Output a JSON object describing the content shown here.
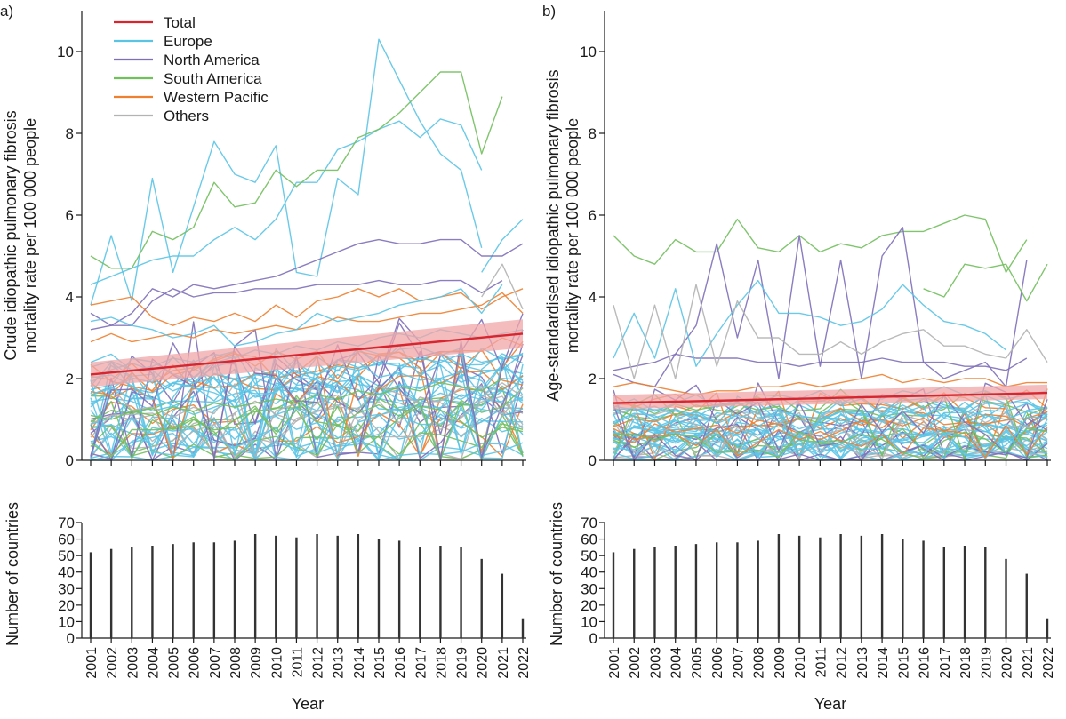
{
  "chart_data": [
    {
      "panel": "a)",
      "type": "line",
      "ylabel_lines": [
        "Crude idiopathic pulmonary fibrosis",
        "mortality rate per 100 000 people"
      ],
      "xlabel": "",
      "ylim": [
        0,
        11
      ],
      "yticks": [
        0,
        2,
        4,
        6,
        8,
        10
      ],
      "x": [
        2001,
        2002,
        2003,
        2004,
        2005,
        2006,
        2007,
        2008,
        2009,
        2010,
        2011,
        2012,
        2013,
        2014,
        2015,
        2016,
        2017,
        2018,
        2019,
        2020,
        2021,
        2022
      ],
      "legend": [
        "Total",
        "Europe",
        "North America",
        "South America",
        "Western Pacific",
        "Others"
      ],
      "colors": {
        "Total": "#d7262f",
        "Europe": "#5bc4e5",
        "North America": "#7e6fb8",
        "South America": "#72bf5e",
        "Western Pacific": "#ee8030",
        "Others": "#b3b3b3",
        "Band": "#f2a5a7"
      },
      "total_trend": {
        "start": 2.1,
        "end": 3.1,
        "band_start": [
          1.8,
          2.4
        ],
        "band_end": [
          2.75,
          3.45
        ]
      },
      "highlighted_series": [
        {
          "group": "Europe",
          "values": [
            4.3,
            4.5,
            4.7,
            4.9,
            5.0,
            5.0,
            5.4,
            5.7,
            5.4,
            5.9,
            6.8,
            6.8,
            7.6,
            7.8,
            8.1,
            8.3,
            7.9,
            8.35,
            8.2,
            7.1,
            null,
            null
          ]
        },
        {
          "group": "Europe",
          "values": [
            3.8,
            5.5,
            3.9,
            6.9,
            4.6,
            6.2,
            7.8,
            7.0,
            6.8,
            7.7,
            4.6,
            4.5,
            6.9,
            6.5,
            10.3,
            9.3,
            8.3,
            7.5,
            7.1,
            5.2,
            null,
            null
          ]
        },
        {
          "group": "South America",
          "values": [
            5.0,
            4.7,
            4.7,
            5.6,
            5.4,
            5.7,
            6.8,
            6.2,
            6.3,
            7.1,
            6.7,
            7.1,
            7.1,
            7.9,
            8.1,
            8.5,
            9.0,
            9.5,
            9.5,
            7.5,
            8.9,
            null
          ]
        },
        {
          "group": "Europe",
          "values": [
            null,
            null,
            null,
            null,
            null,
            null,
            null,
            null,
            null,
            null,
            null,
            null,
            null,
            null,
            null,
            null,
            null,
            null,
            null,
            4.6,
            5.4,
            5.9
          ]
        },
        {
          "group": "North America",
          "values": [
            3.6,
            3.3,
            3.6,
            4.2,
            4.0,
            4.3,
            4.2,
            4.3,
            4.4,
            4.5,
            4.7,
            4.9,
            5.1,
            5.3,
            5.4,
            5.3,
            5.3,
            5.4,
            5.4,
            5.0,
            5.0,
            5.3
          ]
        },
        {
          "group": "North America",
          "values": [
            3.2,
            3.3,
            3.3,
            3.9,
            4.2,
            4.0,
            4.1,
            4.1,
            4.2,
            4.2,
            4.2,
            4.3,
            4.3,
            4.3,
            4.4,
            4.3,
            4.3,
            4.4,
            4.4,
            4.1,
            4.4,
            null
          ]
        },
        {
          "group": "Western Pacific",
          "values": [
            3.8,
            3.9,
            4.0,
            3.5,
            3.3,
            3.5,
            3.4,
            3.6,
            3.4,
            3.8,
            3.5,
            3.9,
            4.0,
            4.2,
            4.0,
            4.2,
            3.9,
            4.0,
            4.1,
            3.7,
            4.0,
            4.2
          ]
        },
        {
          "group": "Western Pacific",
          "values": [
            2.9,
            3.1,
            2.9,
            3.0,
            3.1,
            3.0,
            3.2,
            3.1,
            3.2,
            3.3,
            3.2,
            3.3,
            3.5,
            3.4,
            3.4,
            3.5,
            3.6,
            3.6,
            3.7,
            3.8,
            4.1,
            3.6
          ]
        },
        {
          "group": "Others",
          "values": [
            null,
            null,
            null,
            null,
            null,
            null,
            null,
            null,
            null,
            null,
            null,
            null,
            null,
            null,
            null,
            null,
            null,
            null,
            null,
            4.0,
            4.8,
            3.7
          ]
        },
        {
          "group": "Europe",
          "values": [
            3.4,
            3.5,
            3.3,
            3.2,
            3.0,
            3.1,
            3.3,
            2.8,
            2.9,
            3.1,
            3.2,
            3.6,
            3.4,
            3.5,
            3.6,
            3.8,
            3.9,
            4.0,
            4.2,
            3.6,
            4.3,
            null
          ]
        },
        {
          "group": "Europe",
          "values": [
            2.4,
            2.6,
            2.2,
            2.3,
            2.5,
            2.4,
            2.6,
            2.5,
            2.7,
            2.6,
            2.8,
            2.7,
            2.9,
            2.8,
            3.0,
            3.1,
            3.0,
            3.2,
            3.1,
            3.0,
            3.1,
            3.2
          ]
        },
        {
          "group": "Europe",
          "values": [
            1.6,
            1.8,
            1.5,
            2.0,
            1.7,
            1.9,
            2.0,
            1.8,
            2.1,
            2.0,
            2.2,
            2.1,
            2.3,
            2.2,
            2.4,
            2.3,
            2.5,
            2.4,
            2.6,
            2.4,
            2.5,
            2.6
          ]
        },
        {
          "group": "South America",
          "values": [
            1.1,
            1.0,
            1.2,
            1.1,
            1.3,
            1.2,
            1.4,
            1.3,
            1.4,
            1.5,
            1.4,
            1.6,
            1.5,
            1.7,
            1.6,
            1.8,
            1.7,
            1.9,
            1.8,
            1.7,
            2.0,
            null
          ]
        }
      ],
      "country_counts": {
        "ylabel": "Number of countries",
        "xlabel": "Year",
        "ylim": [
          0,
          70
        ],
        "yticks": [
          0,
          10,
          20,
          30,
          40,
          50,
          60,
          70
        ],
        "categories": [
          "2001",
          "2002",
          "2003",
          "2004",
          "2005",
          "2006",
          "2007",
          "2008",
          "2009",
          "2010",
          "2011",
          "2012",
          "2013",
          "2014",
          "2015",
          "2016",
          "2017",
          "2018",
          "2019",
          "2020",
          "2021",
          "2022"
        ],
        "values": [
          52,
          54,
          55,
          56,
          57,
          58,
          58,
          59,
          63,
          62,
          61,
          63,
          62,
          63,
          60,
          59,
          55,
          56,
          55,
          48,
          39,
          12
        ]
      }
    },
    {
      "panel": "b)",
      "type": "line",
      "ylabel_lines": [
        "Age-standardised idiopathic pulmonary fibrosis",
        "mortality rate per 100 000 people"
      ],
      "xlabel": "",
      "ylim": [
        0,
        11
      ],
      "yticks": [
        0,
        2,
        4,
        6,
        8,
        10
      ],
      "x": [
        2001,
        2002,
        2003,
        2004,
        2005,
        2006,
        2007,
        2008,
        2009,
        2010,
        2011,
        2012,
        2013,
        2014,
        2015,
        2016,
        2017,
        2018,
        2019,
        2020,
        2021,
        2022
      ],
      "total_trend": {
        "start": 1.4,
        "end": 1.65,
        "band_start": [
          1.25,
          1.6
        ],
        "band_end": [
          1.5,
          1.85
        ]
      },
      "highlighted_series": [
        {
          "group": "South America",
          "values": [
            5.5,
            5.0,
            4.8,
            5.4,
            5.1,
            5.1,
            5.9,
            5.2,
            5.1,
            5.5,
            5.1,
            5.3,
            5.2,
            5.5,
            5.6,
            5.6,
            5.8,
            6.0,
            5.9,
            4.6,
            5.4,
            null
          ]
        },
        {
          "group": "North America",
          "values": [
            2.1,
            1.9,
            1.8,
            2.6,
            3.3,
            5.3,
            3.0,
            4.9,
            2.0,
            5.5,
            2.3,
            4.9,
            2.0,
            5.0,
            5.7,
            2.4,
            2.0,
            2.2,
            2.4,
            1.8,
            4.9,
            null
          ]
        },
        {
          "group": "North America",
          "values": [
            2.2,
            2.3,
            2.4,
            2.6,
            2.5,
            2.5,
            2.5,
            2.4,
            2.4,
            2.3,
            2.4,
            2.4,
            2.4,
            2.5,
            2.4,
            2.4,
            2.4,
            2.3,
            2.3,
            2.2,
            2.5,
            null
          ]
        },
        {
          "group": "South America",
          "values": [
            null,
            null,
            null,
            null,
            null,
            null,
            null,
            null,
            null,
            null,
            null,
            null,
            null,
            null,
            null,
            4.2,
            4.0,
            4.8,
            4.7,
            4.8,
            3.9,
            4.8
          ]
        },
        {
          "group": "Europe",
          "values": [
            2.5,
            3.6,
            2.5,
            4.2,
            2.3,
            3.1,
            3.8,
            4.4,
            3.6,
            3.6,
            3.5,
            3.3,
            3.4,
            3.7,
            4.3,
            3.8,
            3.4,
            3.3,
            3.1,
            2.7,
            null,
            null
          ]
        },
        {
          "group": "Others",
          "values": [
            3.8,
            2.0,
            3.8,
            2.0,
            4.3,
            2.3,
            3.9,
            3.0,
            3.0,
            2.6,
            2.6,
            2.9,
            2.6,
            2.9,
            3.1,
            3.2,
            2.8,
            2.8,
            2.6,
            2.5,
            3.2,
            2.4
          ]
        },
        {
          "group": "Western Pacific",
          "values": [
            1.8,
            1.9,
            1.8,
            1.7,
            1.6,
            1.7,
            1.7,
            1.8,
            1.8,
            1.9,
            1.8,
            1.9,
            2.0,
            2.1,
            1.9,
            2.0,
            1.9,
            2.0,
            2.0,
            1.8,
            1.9,
            1.9
          ]
        },
        {
          "group": "Europe",
          "values": [
            1.3,
            1.5,
            1.2,
            1.4,
            1.6,
            1.3,
            1.5,
            1.4,
            1.6,
            1.5,
            1.7,
            1.4,
            1.6,
            1.5,
            1.7,
            1.6,
            1.8,
            1.6,
            1.7,
            1.5,
            1.6,
            1.7
          ]
        },
        {
          "group": "Europe",
          "values": [
            0.9,
            1.1,
            0.8,
            1.0,
            1.2,
            0.9,
            1.1,
            1.0,
            1.2,
            1.1,
            1.0,
            1.2,
            1.1,
            1.3,
            1.2,
            1.1,
            1.3,
            1.2,
            1.1,
            1.0,
            1.2,
            1.1
          ]
        }
      ],
      "country_counts": {
        "ylabel": "Number of countries",
        "xlabel": "Year",
        "ylim": [
          0,
          70
        ],
        "yticks": [
          0,
          10,
          20,
          30,
          40,
          50,
          60,
          70
        ],
        "categories": [
          "2001",
          "2002",
          "2003",
          "2004",
          "2005",
          "2006",
          "2007",
          "2008",
          "2009",
          "2010",
          "2011",
          "2012",
          "2013",
          "2014",
          "2015",
          "2016",
          "2017",
          "2018",
          "2019",
          "2020",
          "2021",
          "2022"
        ],
        "values": [
          52,
          54,
          55,
          56,
          57,
          58,
          58,
          59,
          63,
          62,
          61,
          63,
          62,
          63,
          60,
          59,
          55,
          56,
          55,
          48,
          39,
          12
        ]
      }
    }
  ]
}
